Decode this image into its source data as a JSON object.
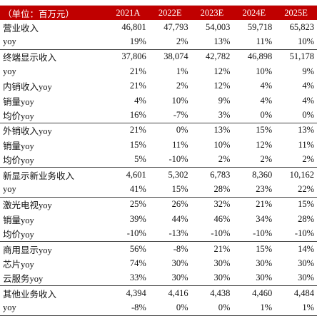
{
  "table": {
    "header": [
      "（单位：百万元）",
      "2021A",
      "2022E",
      "2023E",
      "2024E",
      "2025E"
    ],
    "rows": [
      [
        "营业收入",
        "46,801",
        "47,793",
        "54,003",
        "59,718",
        "65,823"
      ],
      [
        "yoy",
        "19%",
        "2%",
        "13%",
        "11%",
        "10%"
      ],
      [
        "终端显示收入",
        "37,806",
        "38,074",
        "42,782",
        "46,898",
        "51,178"
      ],
      [
        "yoy",
        "21%",
        "1%",
        "12%",
        "10%",
        "9%"
      ],
      [
        "内销收入yoy",
        "21%",
        "2%",
        "12%",
        "4%",
        "4%"
      ],
      [
        "销量yoy",
        "4%",
        "10%",
        "9%",
        "4%",
        "4%"
      ],
      [
        "均价yoy",
        "16%",
        "-7%",
        "3%",
        "0%",
        "0%"
      ],
      [
        "外销收入yoy",
        "21%",
        "0%",
        "13%",
        "15%",
        "13%"
      ],
      [
        "销量yoy",
        "15%",
        "11%",
        "10%",
        "12%",
        "11%"
      ],
      [
        "均价yoy",
        "5%",
        "-10%",
        "2%",
        "2%",
        "2%"
      ],
      [
        "新显示新业务收入",
        "4,601",
        "5,302",
        "6,783",
        "8,360",
        "10,162"
      ],
      [
        "yoy",
        "41%",
        "15%",
        "28%",
        "23%",
        "22%"
      ],
      [
        "激光电视yoy",
        "25%",
        "26%",
        "32%",
        "21%",
        "15%"
      ],
      [
        "销量yoy",
        "39%",
        "44%",
        "46%",
        "34%",
        "28%"
      ],
      [
        "均价yoy",
        "-10%",
        "-13%",
        "-10%",
        "-10%",
        "-10%"
      ],
      [
        "商用显示yoy",
        "56%",
        "-8%",
        "21%",
        "15%",
        "14%"
      ],
      [
        "芯片yoy",
        "74%",
        "30%",
        "30%",
        "30%",
        "30%"
      ],
      [
        "云服务yoy",
        "33%",
        "30%",
        "30%",
        "30%",
        "30%"
      ],
      [
        "其他业务收入",
        "4,394",
        "4,416",
        "4,438",
        "4,460",
        "4,484"
      ],
      [
        "yoy",
        "-8%",
        "0%",
        "0%",
        "1%",
        "1%"
      ]
    ]
  }
}
